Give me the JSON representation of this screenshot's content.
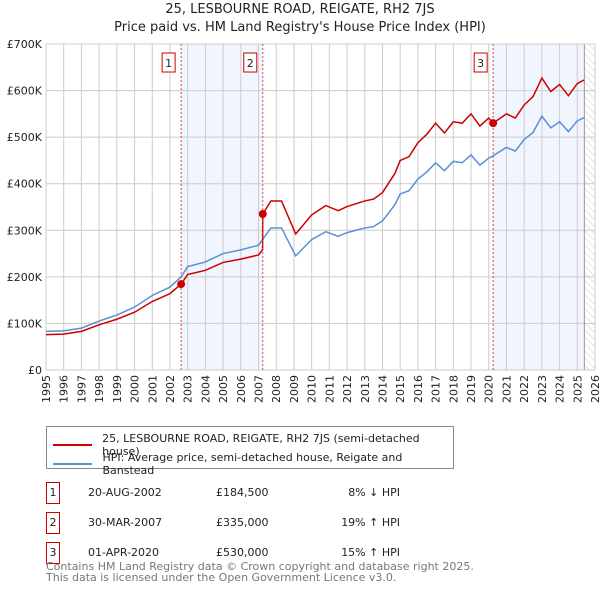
{
  "chart_data": {
    "type": "line",
    "title": "25, LESBOURNE ROAD, REIGATE, RH2 7JS",
    "subtitle": "Price paid vs. HM Land Registry's House Price Index (HPI)",
    "xlim": [
      1995,
      2026
    ],
    "ylim": [
      0,
      700000
    ],
    "yticks": [
      {
        "v": 0,
        "label": "£0"
      },
      {
        "v": 100000,
        "label": "£100K"
      },
      {
        "v": 200000,
        "label": "£200K"
      },
      {
        "v": 300000,
        "label": "£300K"
      },
      {
        "v": 400000,
        "label": "£400K"
      },
      {
        "v": 500000,
        "label": "£500K"
      },
      {
        "v": 600000,
        "label": "£600K"
      },
      {
        "v": 700000,
        "label": "£700K"
      }
    ],
    "xticks": [
      "1995",
      "1996",
      "1997",
      "1998",
      "1999",
      "2000",
      "2001",
      "2002",
      "2003",
      "2004",
      "2005",
      "2006",
      "2007",
      "2008",
      "2009",
      "2010",
      "2011",
      "2012",
      "2013",
      "2014",
      "2015",
      "2016",
      "2017",
      "2018",
      "2019",
      "2020",
      "2021",
      "2022",
      "2023",
      "2024",
      "2025",
      "2026"
    ],
    "grid": true,
    "series": [
      {
        "name": "25, LESBOURNE ROAD, REIGATE, RH2 7JS (semi-detached house)",
        "color": "#cc0000",
        "x": [
          1995,
          1996,
          1997,
          1998,
          1999,
          2000,
          2001,
          2002,
          2002.63,
          2003,
          2004,
          2005,
          2006,
          2007,
          2007.23,
          2007.24,
          2007.7,
          2008.3,
          2009.1,
          2010,
          2010.8,
          2011.5,
          2012,
          2013,
          2013.5,
          2014,
          2014.7,
          2015,
          2015.5,
          2016,
          2016.5,
          2017,
          2017.5,
          2018,
          2018.5,
          2019,
          2019.5,
          2020,
          2020.25,
          2021,
          2021.5,
          2022,
          2022.5,
          2023,
          2023.5,
          2024,
          2024.5,
          2025,
          2025.4
        ],
        "y": [
          76000,
          77000,
          83000,
          97000,
          109000,
          124000,
          147000,
          164000,
          184500,
          205000,
          214000,
          231000,
          238000,
          247000,
          258000,
          335000,
          363000,
          363000,
          292000,
          333000,
          353000,
          342000,
          351000,
          363000,
          367000,
          381000,
          422000,
          450000,
          458000,
          488000,
          506000,
          530000,
          509000,
          533000,
          530000,
          550000,
          524000,
          541000,
          530000,
          550000,
          541000,
          569000,
          587000,
          627000,
          598000,
          613000,
          589000,
          615000,
          623000
        ]
      },
      {
        "name": "HPI: Average price, semi-detached house, Reigate and Banstead",
        "color": "#5b8fd4",
        "x": [
          1995,
          1996,
          1997,
          1998,
          1999,
          2000,
          2001,
          2002,
          2002.63,
          2003,
          2004,
          2005,
          2006,
          2007,
          2007.24,
          2007.7,
          2008.3,
          2009.1,
          2010,
          2010.8,
          2011.5,
          2012,
          2013,
          2013.5,
          2014,
          2014.7,
          2015,
          2015.5,
          2016,
          2016.5,
          2017,
          2017.5,
          2018,
          2018.5,
          2019,
          2019.5,
          2020,
          2020.25,
          2021,
          2021.5,
          2022,
          2022.5,
          2023,
          2023.5,
          2024,
          2024.5,
          2025,
          2025.4
        ],
        "y": [
          83000,
          84000,
          90000,
          105000,
          118000,
          135000,
          160000,
          178000,
          200000,
          222000,
          232000,
          250000,
          258000,
          268000,
          281000,
          305000,
          305000,
          245000,
          280000,
          297000,
          287000,
          295000,
          305000,
          308000,
          320000,
          355000,
          378000,
          385000,
          410000,
          425000,
          445000,
          428000,
          448000,
          445000,
          462000,
          440000,
          455000,
          460000,
          478000,
          470000,
          495000,
          510000,
          545000,
          520000,
          533000,
          512000,
          535000,
          542000
        ]
      }
    ],
    "sales": [
      {
        "n": "1",
        "x": 2002.63,
        "y": 184500,
        "date": "20-AUG-2002",
        "price": "£184,500",
        "hpi": "8% ↓ HPI"
      },
      {
        "n": "2",
        "x": 2007.24,
        "y": 335000,
        "date": "30-MAR-2007",
        "price": "£335,000",
        "hpi": "19% ↑ HPI"
      },
      {
        "n": "3",
        "x": 2020.25,
        "y": 530000,
        "date": "01-APR-2020",
        "price": "£530,000",
        "hpi": "15% ↑ HPI"
      }
    ],
    "shaded": [
      [
        2002.63,
        2007.24
      ],
      [
        2020.25,
        2025.4
      ]
    ],
    "hatched_from": 2025.4,
    "legend": "below"
  },
  "footer": {
    "line1": "Contains HM Land Registry data © Crown copyright and database right 2025.",
    "line2": "This data is licensed under the Open Government Licence v3.0."
  }
}
